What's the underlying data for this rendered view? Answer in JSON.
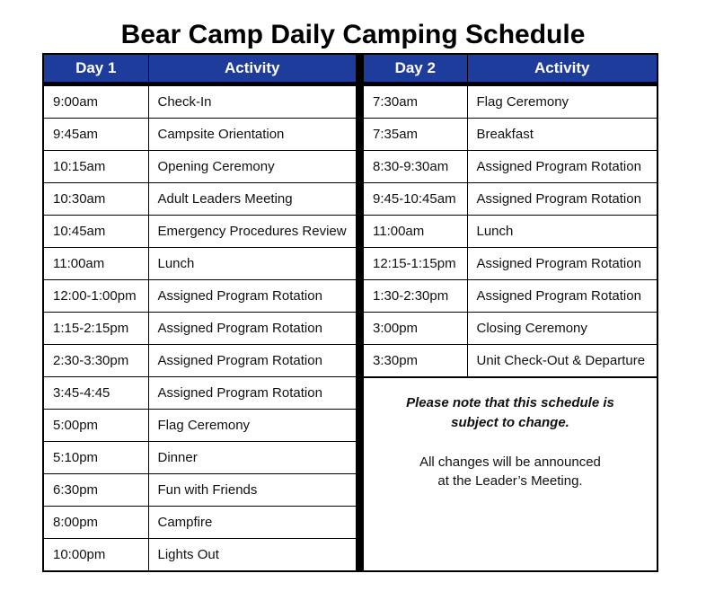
{
  "title": "Bear Camp Daily Camping Schedule",
  "colors": {
    "header_bg": "#1e3c9b",
    "header_text": "#ffffff",
    "divider": "#000000"
  },
  "day1": {
    "day_header": "Day 1",
    "activity_header": "Activity",
    "rows": [
      [
        "9:00am",
        "Check-In"
      ],
      [
        "9:45am",
        "Campsite Orientation"
      ],
      [
        "10:15am",
        "Opening Ceremony"
      ],
      [
        "10:30am",
        "Adult Leaders Meeting"
      ],
      [
        "10:45am",
        "Emergency Procedures Review"
      ],
      [
        "11:00am",
        "Lunch"
      ],
      [
        "12:00-1:00pm",
        "Assigned Program Rotation"
      ],
      [
        "1:15-2:15pm",
        "Assigned Program Rotation"
      ],
      [
        "2:30-3:30pm",
        "Assigned Program Rotation"
      ],
      [
        "3:45-4:45",
        "Assigned Program Rotation"
      ],
      [
        "5:00pm",
        "Flag Ceremony"
      ],
      [
        "5:10pm",
        "Dinner"
      ],
      [
        "6:30pm",
        "Fun with Friends"
      ],
      [
        "8:00pm",
        "Campfire"
      ],
      [
        "10:00pm",
        "Lights Out"
      ]
    ]
  },
  "day2": {
    "day_header": "Day 2",
    "activity_header": "Activity",
    "rows": [
      [
        "7:30am",
        "Flag Ceremony"
      ],
      [
        "7:35am",
        "Breakfast"
      ],
      [
        "8:30-9:30am",
        "Assigned Program Rotation"
      ],
      [
        "9:45-10:45am",
        "Assigned Program Rotation"
      ],
      [
        "11:00am",
        "Lunch"
      ],
      [
        "12:15-1:15pm",
        "Assigned Program Rotation"
      ],
      [
        "1:30-2:30pm",
        "Assigned Program Rotation"
      ],
      [
        "3:00pm",
        "Closing Ceremony"
      ],
      [
        "3:30pm",
        "Unit Check-Out & Departure"
      ]
    ]
  },
  "note": {
    "emphasis_lines": [
      "Please note that this schedule is",
      "subject to change."
    ],
    "plain_lines": [
      "All changes will be announced",
      "at the Leader’s Meeting."
    ]
  }
}
